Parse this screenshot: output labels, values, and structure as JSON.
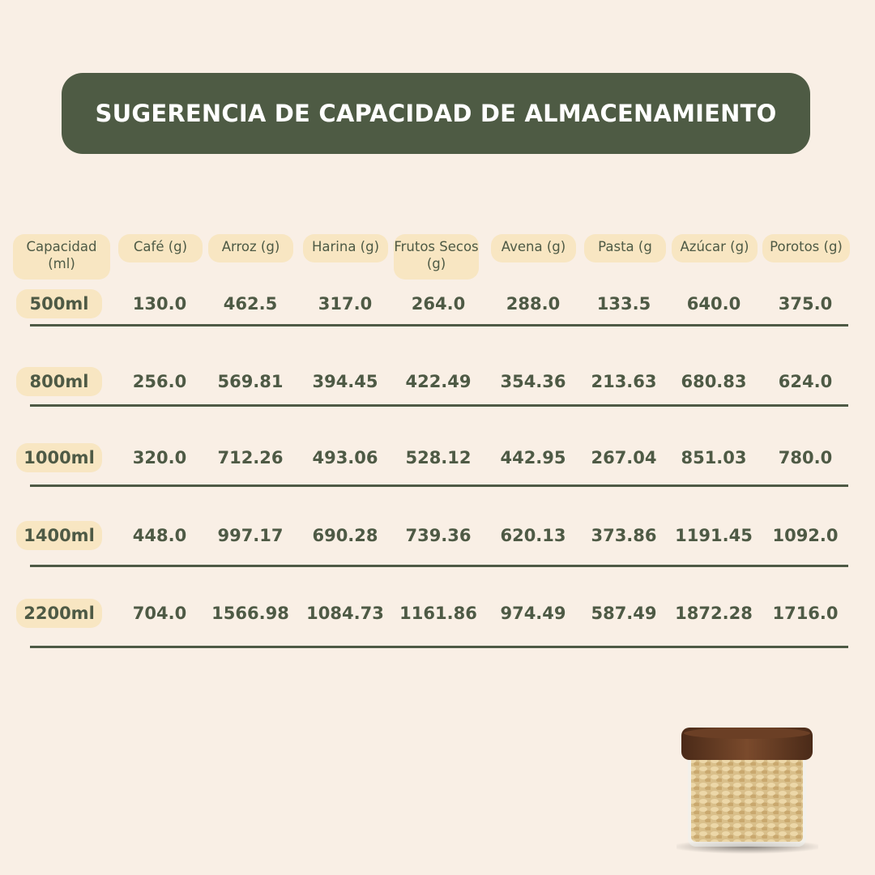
{
  "title": "SUGERENCIA DE CAPACIDAD DE ALMACENAMIENTO",
  "table": {
    "headers": [
      "Capacidad (ml)",
      "Café (g)",
      "Arroz (g)",
      "Harina (g)",
      "Frutos Secos (g)",
      "Avena (g)",
      "Pasta (g",
      "Azúcar (g)",
      "Porotos (g)"
    ],
    "rows": [
      {
        "capacity": "500ml",
        "values": [
          "130.0",
          "462.5",
          "317.0",
          "264.0",
          "288.0",
          "133.5",
          "640.0",
          "375.0"
        ]
      },
      {
        "capacity": "800ml",
        "values": [
          "256.0",
          "569.81",
          "394.45",
          "422.49",
          "354.36",
          "213.63",
          "680.83",
          "624.0"
        ]
      },
      {
        "capacity": "1000ml",
        "values": [
          "320.0",
          "712.26",
          "493.06",
          "528.12",
          "442.95",
          "267.04",
          "851.03",
          "780.0"
        ]
      },
      {
        "capacity": "1400ml",
        "values": [
          "448.0",
          "997.17",
          "690.28",
          "739.36",
          "620.13",
          "373.86",
          "1191.45",
          "1092.0"
        ]
      },
      {
        "capacity": "2200ml",
        "values": [
          "704.0",
          "1566.98",
          "1084.73",
          "1161.86",
          "974.49",
          "587.49",
          "1872.28",
          "1716.0"
        ]
      }
    ]
  },
  "colors": {
    "background": "#f9efe5",
    "title_bar": "#4e5b44",
    "pill": "#f8e6c2",
    "text": "#4e5a45"
  },
  "image": "glass-jar-with-wooden-lid-oats"
}
